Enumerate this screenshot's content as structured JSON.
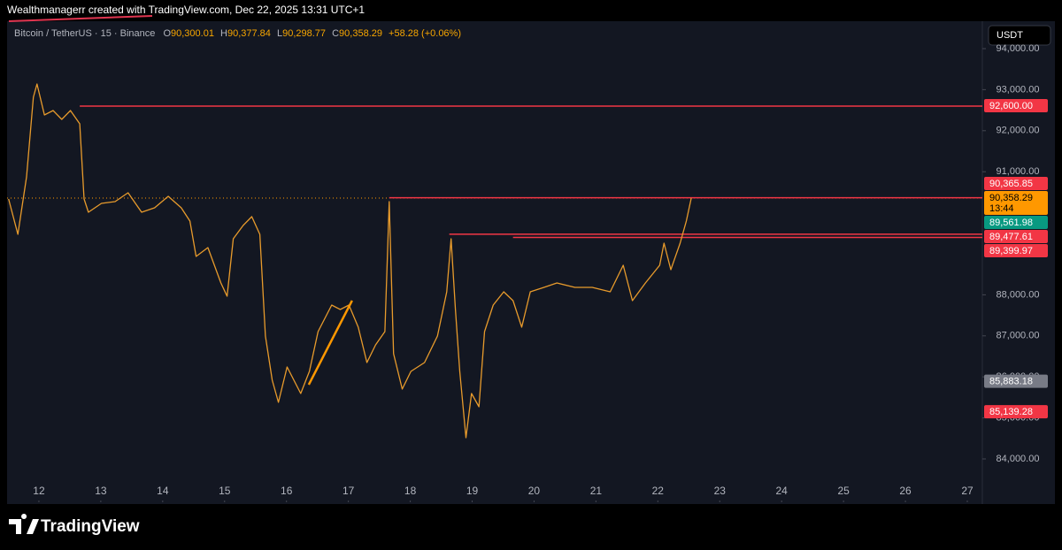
{
  "header": {
    "title": "Wealthmanagerr created with TradingView.com, Dec 22, 2025 13:31 UTC+1"
  },
  "legend": {
    "symbol": "Bitcoin / TetherUS · 15 · Binance",
    "ohlc": [
      {
        "key": "O",
        "value": "90,300.01"
      },
      {
        "key": "H",
        "value": "90,377.84"
      },
      {
        "key": "L",
        "value": "90,298.77"
      },
      {
        "key": "C",
        "value": "90,358.29"
      }
    ],
    "change": "+58.28 (+0.06%)"
  },
  "currency_button": "USDT",
  "brand": "TradingView",
  "chart_data": {
    "type": "line",
    "x": [
      11.51,
      11.66,
      11.8,
      11.91,
      11.97,
      12.09,
      12.23,
      12.37,
      12.51,
      12.66,
      12.73,
      12.8,
      13.01,
      13.23,
      13.44,
      13.66,
      13.87,
      14.09,
      14.3,
      14.44,
      14.54,
      14.73,
      14.94,
      15.04,
      15.14,
      15.3,
      15.44,
      15.57,
      15.66,
      15.77,
      15.87,
      16.01,
      16.23,
      16.37,
      16.51,
      16.73,
      16.87,
      17.01,
      17.16,
      17.3,
      17.44,
      17.59,
      17.66,
      17.73,
      17.87,
      18.01,
      18.23,
      18.44,
      18.59,
      18.66,
      18.73,
      18.8,
      18.9,
      18.99,
      19.11,
      19.2,
      19.34,
      19.51,
      19.66,
      19.8,
      19.94,
      20.16,
      20.37,
      20.66,
      20.94,
      21.23,
      21.44,
      21.59,
      21.8,
      22.03,
      22.1,
      22.21,
      22.36,
      22.46,
      22.54
    ],
    "series": [
      {
        "name": "BTCUSDT",
        "color": "#e89b2c",
        "values": [
          90336,
          89474,
          90875,
          92815,
          93138,
          92384,
          92491,
          92276,
          92491,
          92168,
          90336,
          90013,
          90228,
          90272,
          90487,
          90013,
          90121,
          90401,
          90121,
          89797,
          88935,
          89151,
          88289,
          87966,
          89366,
          89690,
          89905,
          89474,
          86996,
          85918,
          85379,
          86241,
          85595,
          86134,
          87103,
          87750,
          87642,
          87750,
          87211,
          86349,
          86780,
          87103,
          90272,
          86565,
          85703,
          86134,
          86349,
          86996,
          88073,
          89366,
          87642,
          86134,
          84517,
          85595,
          85272,
          87103,
          87750,
          88073,
          87858,
          87211,
          88073,
          88181,
          88289,
          88181,
          88181,
          88073,
          88720,
          87858,
          88289,
          88720,
          89259,
          88612,
          89259,
          89797,
          90358
        ]
      }
    ],
    "xlim": [
      11.486,
      27.243
    ],
    "xticks": [
      12,
      13,
      14,
      15,
      16,
      17,
      18,
      19,
      20,
      21,
      22,
      23,
      24,
      25,
      26,
      27
    ],
    "ylim": [
      82944,
      94668
    ],
    "yticks": [
      {
        "value": 84000,
        "label": "84,000.00"
      },
      {
        "value": 85000,
        "label": "85,000.00"
      },
      {
        "value": 86000,
        "label": "86,000.00"
      },
      {
        "value": 87000,
        "label": "87,000.00"
      },
      {
        "value": 88000,
        "label": "88,000.00"
      },
      {
        "value": 91000,
        "label": "91,000.00"
      },
      {
        "value": 92000,
        "label": "92,000.00"
      },
      {
        "value": 93000,
        "label": "93,000.00"
      },
      {
        "value": 94000,
        "label": "94,000.00"
      }
    ],
    "grid": false,
    "levels": [
      {
        "value": 92600,
        "label": "92,600.00",
        "start": 12.66,
        "color": "#f23645"
      },
      {
        "value": 90365.85,
        "label": "90,365.85",
        "start": 17.66,
        "color": "#f23645"
      },
      {
        "value": 89477.61,
        "label": "89,477.61",
        "start": 18.63,
        "color": "#f23645"
      },
      {
        "value": 89399.97,
        "label": "89,399.97",
        "start": 19.66,
        "color": "#f23645"
      }
    ],
    "price_labels": [
      {
        "value": 89561.98,
        "label": "89,561.98",
        "color": "#089981"
      },
      {
        "value": 85883.18,
        "label": "85,883.18",
        "color": "#787b86"
      },
      {
        "value": 85139.28,
        "label": "85,139.28",
        "color": "#f23645"
      }
    ],
    "last_price": {
      "value": 90358.29,
      "label": "90,358.29",
      "countdown": "13:44",
      "color": "#ff9800"
    },
    "trendline": {
      "x": [
        16.36,
        17.06
      ],
      "y": [
        85810,
        87860
      ],
      "color": "#ff9800"
    }
  }
}
